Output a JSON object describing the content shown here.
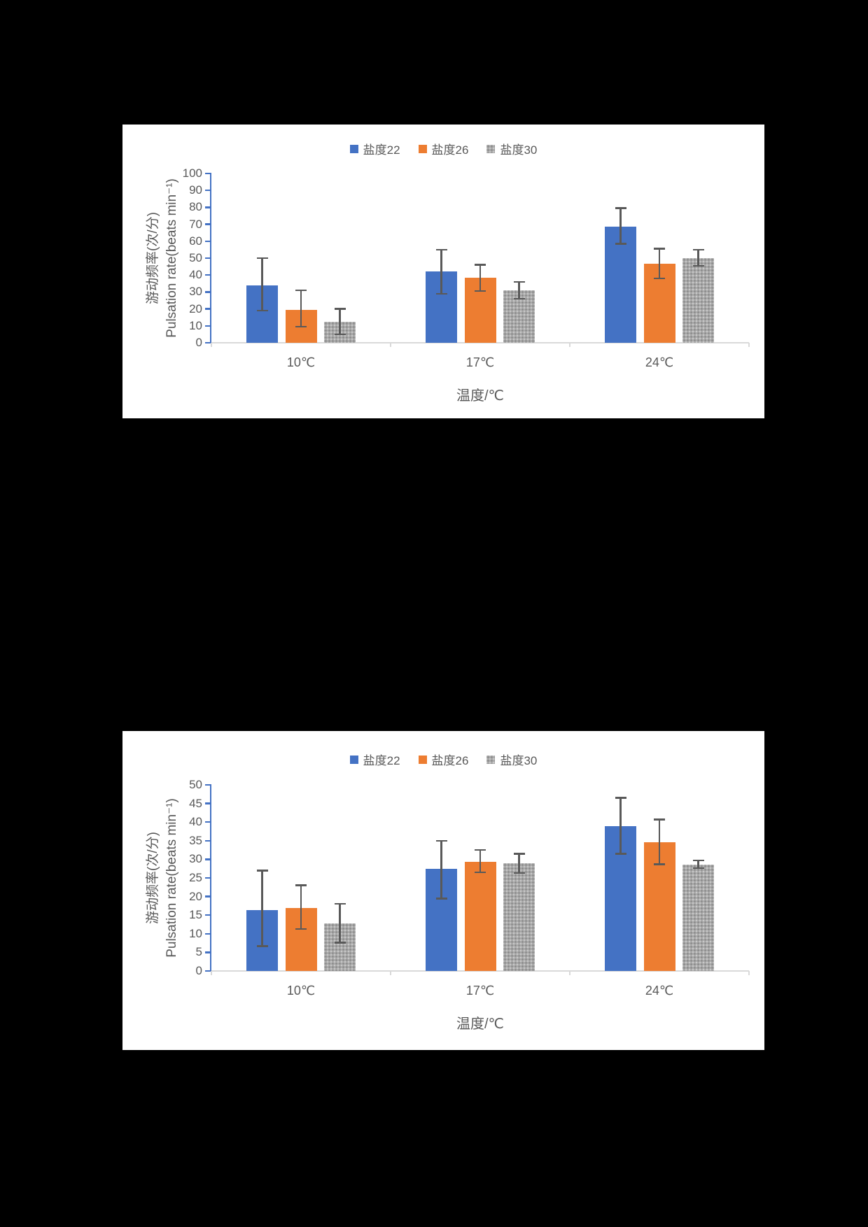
{
  "page": {
    "background": "#000000",
    "panel_background": "#ffffff"
  },
  "chart_data": [
    {
      "type": "bar",
      "title": "",
      "ylabel_zh": "游动频率(次/分)",
      "ylabel_en": "Pulsation rate(beats min⁻¹)",
      "xlabel": "温度/℃",
      "categories": [
        "10℃",
        "17℃",
        "24℃"
      ],
      "ylim": [
        0,
        100
      ],
      "ytick_step": 10,
      "grid": false,
      "legend_position": "top",
      "axis_color": "#4472C4",
      "baseline_color": "#D9D9D9",
      "text_color": "#595959",
      "error_bar_color": "#595959",
      "series": [
        {
          "name": "盐度22",
          "color": "#4472C4",
          "texture": "solid",
          "values": [
            34,
            42,
            68.5
          ],
          "err_lo": [
            19,
            29,
            58.5
          ],
          "err_hi": [
            50,
            55,
            79.5
          ]
        },
        {
          "name": "盐度26",
          "color": "#ED7D31",
          "texture": "solid",
          "values": [
            19.5,
            38.5,
            46.5
          ],
          "err_lo": [
            9.5,
            30.5,
            38
          ],
          "err_hi": [
            31,
            46,
            55.5
          ]
        },
        {
          "name": "盐度30",
          "color": "#A5A5A5",
          "texture": "dotted",
          "values": [
            12.5,
            31,
            50
          ],
          "err_lo": [
            5,
            26,
            45.5
          ],
          "err_hi": [
            20,
            36,
            55
          ]
        }
      ]
    },
    {
      "type": "bar",
      "title": "",
      "ylabel_zh": "游动频率(次/分)",
      "ylabel_en": "Pulsation rate(beats min⁻¹)",
      "xlabel": "温度/℃",
      "categories": [
        "10℃",
        "17℃",
        "24℃"
      ],
      "ylim": [
        0,
        50
      ],
      "ytick_step": 5,
      "grid": false,
      "legend_position": "top",
      "axis_color": "#4472C4",
      "baseline_color": "#D9D9D9",
      "text_color": "#595959",
      "error_bar_color": "#595959",
      "series": [
        {
          "name": "盐度22",
          "color": "#4472C4",
          "texture": "solid",
          "values": [
            16.3,
            27.5,
            39
          ],
          "err_lo": [
            6.7,
            19.5,
            31.5
          ],
          "err_hi": [
            27,
            35,
            46.5
          ]
        },
        {
          "name": "盐度26",
          "color": "#ED7D31",
          "texture": "solid",
          "values": [
            17,
            29.3,
            34.5
          ],
          "err_lo": [
            11.3,
            26.5,
            28.7
          ],
          "err_hi": [
            23,
            32.5,
            40.7
          ]
        },
        {
          "name": "盐度30",
          "color": "#A5A5A5",
          "texture": "dotted",
          "values": [
            12.7,
            28.9,
            28.5
          ],
          "err_lo": [
            7.6,
            26.3,
            27.6
          ],
          "err_hi": [
            18,
            31.5,
            29.7
          ]
        }
      ]
    }
  ]
}
